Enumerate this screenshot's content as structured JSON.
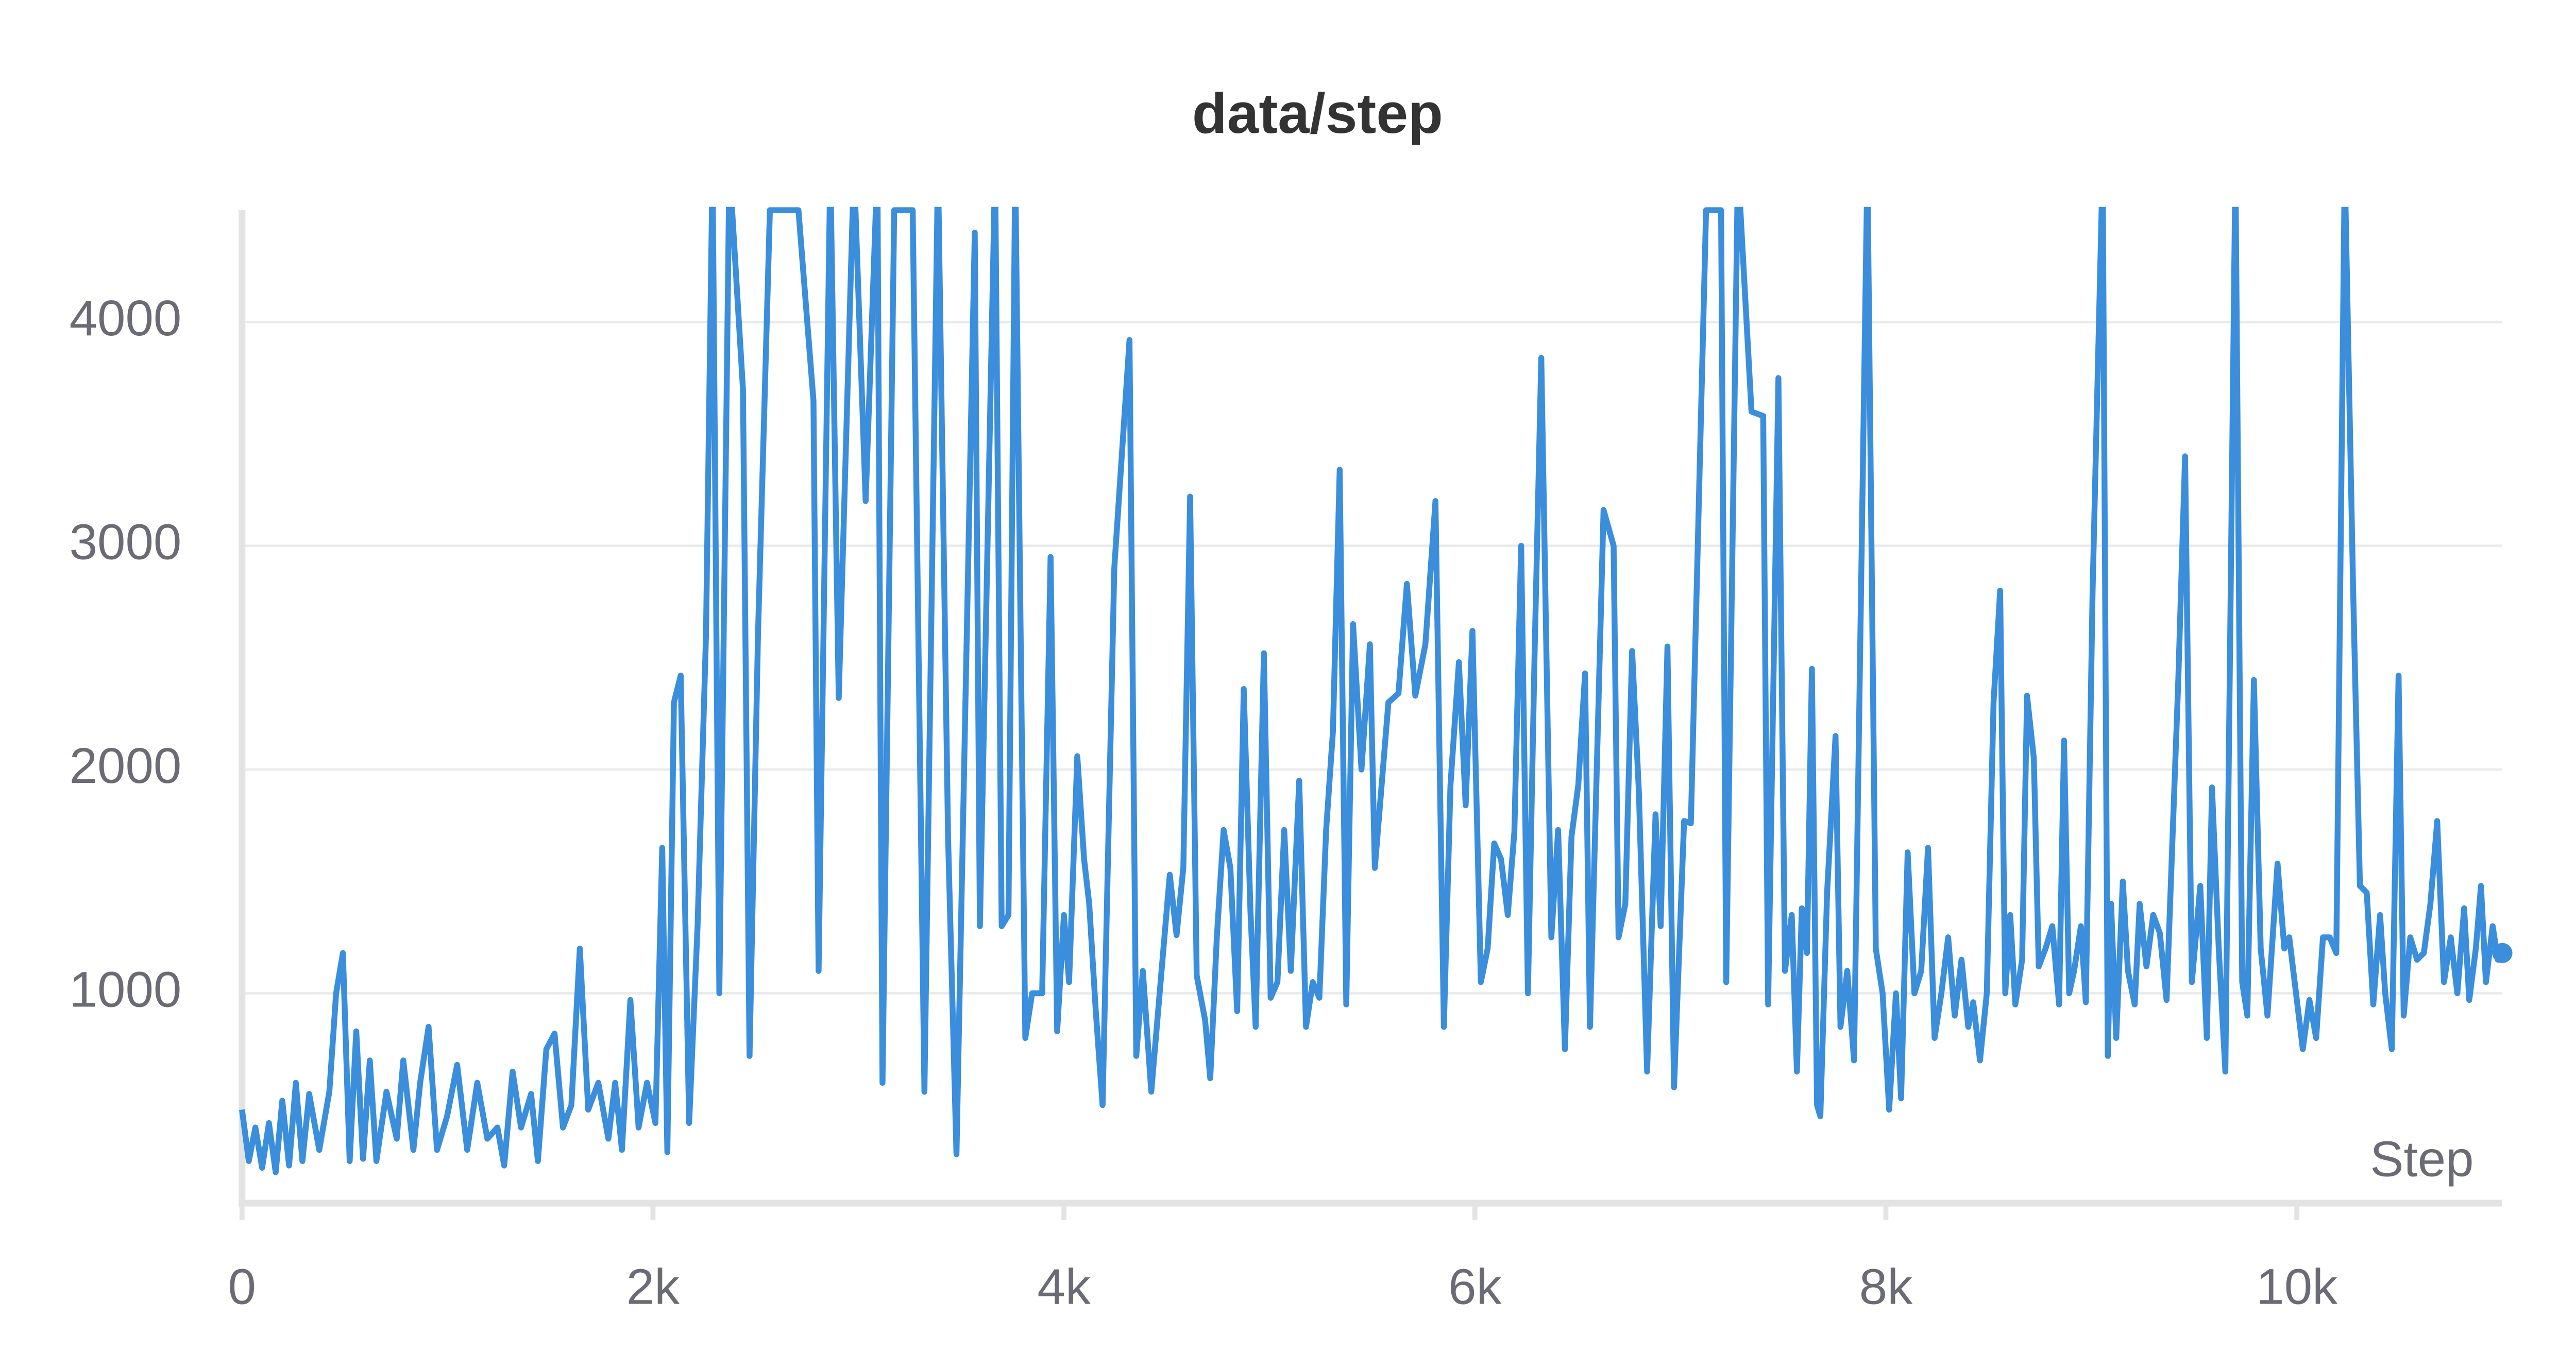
{
  "chart_data": {
    "type": "line",
    "title": "data/step",
    "x_label": "Step",
    "color": "#3a8edb",
    "grid": true,
    "x": [
      0,
      33,
      65,
      98,
      131,
      164,
      196,
      229,
      262,
      294,
      327,
      376,
      425,
      458,
      491,
      524,
      556,
      589,
      622,
      654,
      703,
      753,
      785,
      834,
      867,
      908,
      949,
      998,
      1047,
      1096,
      1145,
      1194,
      1243,
      1276,
      1317,
      1358,
      1407,
      1440,
      1481,
      1521,
      1562,
      1603,
      1644,
      1685,
      1734,
      1783,
      1816,
      1849,
      1890,
      1930,
      1971,
      2012,
      2045,
      2070,
      2102,
      2135,
      2176,
      2217,
      2258,
      2290,
      2323,
      2372,
      2438,
      2470,
      2511,
      2569,
      2708,
      2781,
      2806,
      2863,
      2904,
      2978,
      3035,
      3092,
      3117,
      3174,
      3264,
      3321,
      3387,
      3436,
      3477,
      3566,
      3591,
      3665,
      3697,
      3730,
      3763,
      3812,
      3845,
      3894,
      3935,
      3967,
      4000,
      4025,
      4065,
      4098,
      4123,
      4155,
      4188,
      4245,
      4319,
      4352,
      4384,
      4425,
      4475,
      4515,
      4548,
      4581,
      4614,
      4646,
      4687,
      4712,
      4744,
      4777,
      4810,
      4843,
      4875,
      4908,
      4933,
      4973,
      5006,
      5039,
      5072,
      5104,
      5145,
      5178,
      5211,
      5243,
      5276,
      5309,
      5342,
      5374,
      5407,
      5448,
      5489,
      5513,
      5579,
      5628,
      5669,
      5710,
      5759,
      5808,
      5849,
      5881,
      5922,
      5955,
      5988,
      6029,
      6062,
      6094,
      6127,
      6160,
      6192,
      6225,
      6258,
      6290,
      6323,
      6372,
      6405,
      6438,
      6470,
      6503,
      6536,
      6560,
      6593,
      6626,
      6675,
      6699,
      6732,
      6765,
      6798,
      6838,
      6879,
      6904,
      6937,
      6969,
      7018,
      7051,
      7125,
      7198,
      7223,
      7280,
      7346,
      7403,
      7427,
      7477,
      7509,
      7542,
      7567,
      7591,
      7616,
      7640,
      7665,
      7681,
      7714,
      7755,
      7779,
      7812,
      7845,
      7910,
      7951,
      7984,
      8016,
      8049,
      8074,
      8106,
      8139,
      8172,
      8205,
      8237,
      8270,
      8303,
      8335,
      8368,
      8401,
      8425,
      8458,
      8491,
      8524,
      8556,
      8581,
      8605,
      8630,
      8663,
      8687,
      8720,
      8744,
      8777,
      8810,
      8843,
      8867,
      8892,
      8916,
      8949,
      8973,
      9006,
      9055,
      9080,
      9096,
      9121,
      9153,
      9178,
      9211,
      9235,
      9268,
      9301,
      9333,
      9366,
      9423,
      9456,
      9489,
      9530,
      9562,
      9587,
      9620,
      9652,
      9701,
      9734,
      9759,
      9791,
      9824,
      9857,
      9906,
      9939,
      9963,
      9996,
      10029,
      10061,
      10094,
      10127,
      10160,
      10192,
      10233,
      10274,
      10307,
      10340,
      10372,
      10405,
      10430,
      10462,
      10495,
      10520,
      10552,
      10585,
      10618,
      10650,
      10683,
      10716,
      10749,
      10781,
      10814,
      10839,
      10871,
      10896,
      10920,
      10953,
      10978,
      11000
    ],
    "values": [
      480,
      250,
      400,
      220,
      420,
      200,
      520,
      230,
      600,
      250,
      550,
      300,
      560,
      1000,
      1180,
      250,
      830,
      260,
      700,
      250,
      560,
      350,
      700,
      300,
      600,
      850,
      300,
      450,
      680,
      300,
      600,
      350,
      400,
      230,
      650,
      400,
      550,
      250,
      750,
      820,
      400,
      500,
      1200,
      480,
      600,
      350,
      600,
      300,
      970,
      400,
      600,
      420,
      1650,
      290,
      2300,
      2420,
      420,
      1300,
      2600,
      4700,
      1000,
      4700,
      3700,
      720,
      2600,
      4500,
      4500,
      3650,
      1100,
      4700,
      2320,
      4700,
      3200,
      4700,
      600,
      4500,
      4500,
      560,
      4700,
      1700,
      280,
      4400,
      1300,
      4700,
      1300,
      1350,
      4700,
      800,
      1000,
      1000,
      2950,
      830,
      1350,
      1050,
      2060,
      1600,
      1400,
      920,
      500,
      2900,
      3920,
      720,
      1100,
      560,
      1100,
      1530,
      1260,
      1560,
      3220,
      1080,
      880,
      620,
      1250,
      1730,
      1560,
      920,
      2360,
      1360,
      850,
      2520,
      980,
      1050,
      1730,
      1100,
      1950,
      850,
      1050,
      980,
      1730,
      2170,
      3340,
      950,
      2650,
      2000,
      2560,
      1560,
      2300,
      2340,
      2830,
      2330,
      2560,
      3200,
      850,
      1930,
      2480,
      1840,
      2620,
      1050,
      1200,
      1670,
      1600,
      1350,
      1720,
      3000,
      1000,
      2500,
      3840,
      1250,
      1730,
      750,
      1700,
      1930,
      2430,
      850,
      2000,
      3160,
      3000,
      1250,
      1400,
      2530,
      1900,
      650,
      1800,
      1300,
      2550,
      580,
      1770,
      1760,
      4500,
      4500,
      1050,
      4700,
      3600,
      3580,
      950,
      3750,
      1100,
      1350,
      650,
      1380,
      1180,
      2450,
      500,
      450,
      1450,
      2150,
      850,
      1100,
      700,
      4700,
      1200,
      1000,
      480,
      1000,
      530,
      1630,
      1000,
      1100,
      1650,
      800,
      1000,
      1250,
      900,
      1150,
      850,
      960,
      700,
      1000,
      2300,
      2800,
      1000,
      1350,
      950,
      1150,
      2330,
      2050,
      1120,
      1200,
      1300,
      950,
      2130,
      1000,
      1100,
      1300,
      960,
      2800,
      4700,
      720,
      1400,
      800,
      1500,
      1100,
      950,
      1400,
      1120,
      1350,
      1270,
      970,
      2400,
      3400,
      1050,
      1480,
      800,
      1920,
      1200,
      650,
      4700,
      1050,
      900,
      2400,
      1200,
      900,
      1580,
      1200,
      1250,
      1000,
      750,
      970,
      800,
      1250,
      1250,
      1180,
      4700,
      2800,
      1480,
      1450,
      950,
      1350,
      1000,
      750,
      2420,
      900,
      1250,
      1150,
      1180,
      1400,
      1770,
      1050,
      1250,
      1000,
      1380,
      970,
      1200,
      1480,
      1050,
      1300,
      1150,
      1180
    ],
    "xlim": [
      0,
      11000
    ],
    "ylim": [
      62,
      4500
    ],
    "xticks": [
      0,
      {
        "value": 2000,
        "label": "2k"
      },
      {
        "value": 4000,
        "label": "4k"
      },
      {
        "value": 6000,
        "label": "6k"
      },
      {
        "value": 8000,
        "label": "8k"
      },
      {
        "value": 10000,
        "label": "10k"
      }
    ],
    "yticks": [
      1000,
      2000,
      3000,
      4000
    ]
  }
}
